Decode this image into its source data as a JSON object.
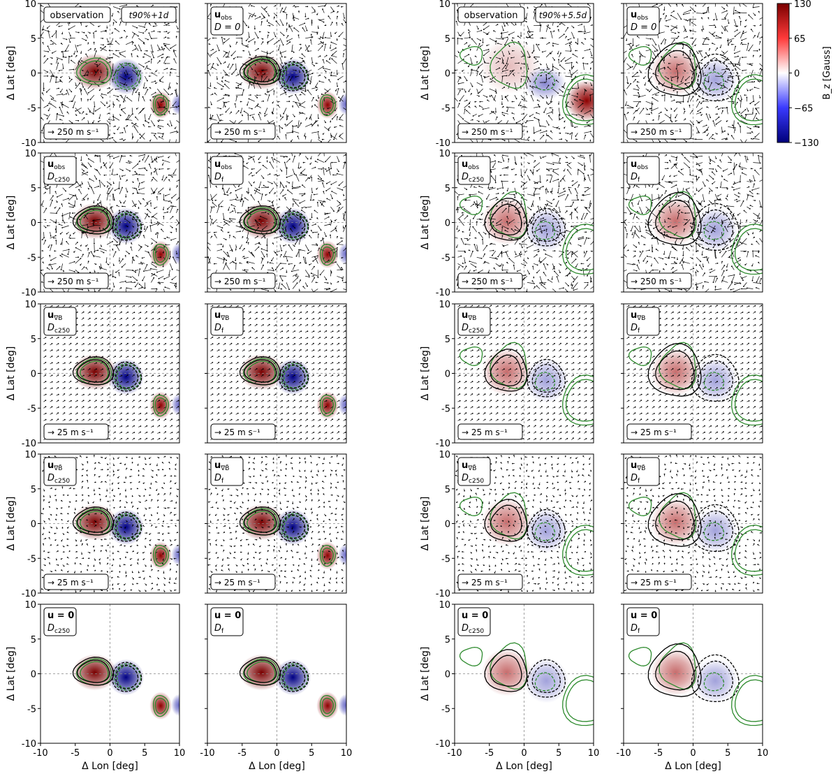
{
  "colorbar": {
    "label": "B_z [Gauss]",
    "ticks": [
      "130",
      "65",
      "0",
      "−65",
      "−130"
    ],
    "range": [
      -130,
      130
    ],
    "colors": {
      "neg": "#00007a",
      "mid": "#ffffff",
      "pos": "#7a0000"
    }
  },
  "axes_text": {
    "ylabel": "Δ Lat [deg]",
    "xlabel": "Δ Lon [deg]",
    "ticks": [
      "10",
      "5",
      "0",
      "-5",
      "-10"
    ],
    "xticks": [
      "-10",
      "-5",
      "0",
      "5",
      "10"
    ]
  },
  "time_labels": {
    "left": "t90%+1d",
    "right": "t90%+5.5d"
  },
  "panel_labels": [
    [
      "observation",
      "u_obs D=0",
      "observation",
      "u_obs D=0"
    ],
    [
      "u_obs D_c250",
      "u_obs D_f",
      "u_obs D_c250",
      "u_obs D_f"
    ],
    [
      "u_∇B D_c250",
      "u_∇B D_f",
      "u_∇B D_c250",
      "u_∇B D_f"
    ],
    [
      "u_∇B̄ D_c250",
      "u_∇B̄ D_f",
      "u_∇B̄ D_c250",
      "u_∇B̄ D_f"
    ],
    [
      "u=0 D_c250",
      "u=0 D_f",
      "u=0 D_c250",
      "u=0 D_f"
    ]
  ],
  "row_keys": {
    "velocity": [
      "u",
      "u",
      "u",
      "u",
      "u = 0"
    ],
    "velocity_sub": [
      "obs",
      "obs",
      "∇B",
      "∇B̄",
      ""
    ],
    "diffusion": [
      [
        "D",
        "D = 0"
      ],
      [
        "D",
        "D"
      ],
      [
        "D",
        "D"
      ],
      [
        "D",
        "D"
      ],
      [
        "D",
        "D"
      ]
    ],
    "diffusion_sub": [
      [
        "c250",
        ""
      ],
      [
        "c250",
        "f"
      ],
      [
        "c250",
        "f"
      ],
      [
        "c250",
        "f"
      ],
      [
        "c250",
        "f"
      ]
    ],
    "observation_text": "observation"
  },
  "scale_labels": [
    "→ 250 m s⁻¹",
    "→ 250 m s⁻¹",
    "→ 25 m s⁻¹",
    "→ 25 m s⁻¹",
    ""
  ],
  "chart_data": {
    "type": "heatmap",
    "rows": 5,
    "cols": 4,
    "x_range": [
      -10,
      10
    ],
    "y_range": [
      -10,
      10
    ],
    "xlabel": "Δ Lon [deg]",
    "ylabel": "Δ Lat [deg]",
    "colorbar_range": [
      -130,
      130
    ],
    "field_left": [
      {
        "x": -2.2,
        "y": 0.2,
        "sx": 1.6,
        "sy": 1.3,
        "amp": 130
      },
      {
        "x": 2.3,
        "y": -0.5,
        "sx": 1.3,
        "sy": 1.3,
        "amp": -120
      },
      {
        "x": 7.3,
        "y": -4.6,
        "sx": 0.8,
        "sy": 1.0,
        "amp": 110
      },
      {
        "x": 10.0,
        "y": -4.5,
        "sx": 0.6,
        "sy": 0.8,
        "amp": -60
      }
    ],
    "field_right_obs": [
      {
        "x": -2.0,
        "y": 1.0,
        "sx": 2.2,
        "sy": 2.0,
        "amp": 25
      },
      {
        "x": 3.0,
        "y": -1.5,
        "sx": 1.5,
        "sy": 1.2,
        "amp": -45
      },
      {
        "x": 9.0,
        "y": -4.0,
        "sx": 1.5,
        "sy": 1.5,
        "amp": 110
      }
    ],
    "field_right_model": [
      {
        "x": -2.5,
        "y": 0.2,
        "sx": 1.8,
        "sy": 1.7,
        "amp": 55
      },
      {
        "x": 3.2,
        "y": -1.0,
        "sx": 1.6,
        "sy": 1.6,
        "amp": -35
      }
    ]
  }
}
